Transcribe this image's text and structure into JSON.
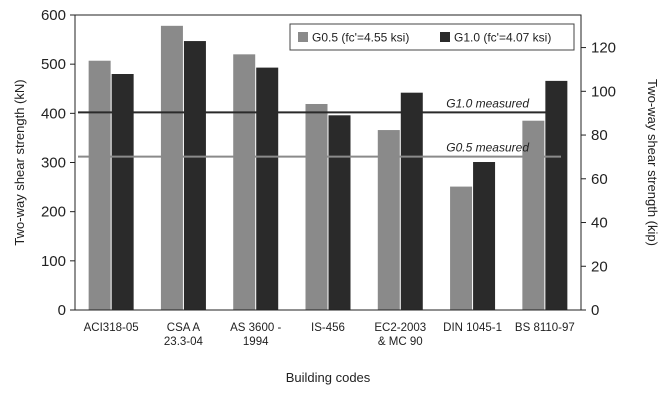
{
  "chart_data": {
    "type": "bar",
    "categories": [
      [
        "ACI318-05"
      ],
      [
        "CSA A",
        "23.3-04"
      ],
      [
        "AS 3600 -",
        "1994"
      ],
      [
        "IS-456"
      ],
      [
        "EC2-2003",
        "& MC 90"
      ],
      [
        "DIN 1045-1"
      ],
      [
        "BS 8110-97"
      ]
    ],
    "series": [
      {
        "name": "G0.5 (fc'=4.55 ksi)",
        "color": "#8a8a8a",
        "values": [
          507,
          578,
          520,
          419,
          366,
          251,
          385
        ]
      },
      {
        "name": "G1.0 (fc'=4.07 ksi)",
        "color": "#2a2a2a",
        "values": [
          480,
          547,
          493,
          396,
          442,
          301,
          466
        ]
      }
    ],
    "reference_lines": [
      {
        "label": "G1.0 measured",
        "value": 402,
        "color": "#2a2a2a"
      },
      {
        "label": "G0.5 measured",
        "value": 312,
        "color": "#8a8a8a"
      }
    ],
    "xlabel": "Building codes",
    "ylabel": "Two-way shear strength (kN)",
    "y2label": "Two-way shear strength (kip)",
    "ylim": [
      0,
      600
    ],
    "yticks": [
      0,
      100,
      200,
      300,
      400,
      500,
      600
    ],
    "y2ticks": [
      0,
      20,
      40,
      60,
      80,
      100,
      120
    ],
    "y2_factor_kn_per_kip": 4.448,
    "legend_position": "top-right",
    "grid": false
  }
}
